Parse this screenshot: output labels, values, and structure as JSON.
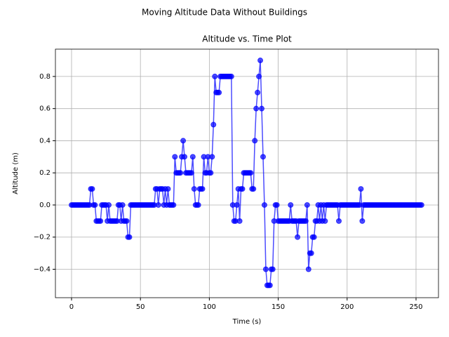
{
  "chart_data": {
    "type": "line",
    "suptitle": "Moving Altitude Data Without Buildings",
    "title": "Altitude vs. Time Plot",
    "x_label": "Time (s)",
    "y_label": "Altitude (m)",
    "color": "#0000ff",
    "grid": true,
    "xlim": [
      -11.7,
      266.3
    ],
    "ylim": [
      -0.577,
      0.97
    ],
    "xticks": [
      0,
      50,
      100,
      150,
      200,
      250
    ],
    "yticks": [
      {
        "value": -0.4,
        "label": "−0.4"
      },
      {
        "value": -0.2,
        "label": "−0.2"
      },
      {
        "value": 0,
        "label": "0.0"
      },
      0.2,
      0.4,
      0.6,
      0.8
    ],
    "x": [
      0,
      1,
      2,
      3,
      4,
      5,
      6,
      7,
      8,
      9,
      10,
      11,
      12,
      13,
      14,
      15,
      16,
      17,
      18,
      19,
      20,
      21,
      22,
      23,
      24,
      25,
      26,
      27,
      28,
      29,
      30,
      31,
      32,
      33,
      34,
      35,
      36,
      37,
      38,
      39,
      40,
      41,
      42,
      43,
      44,
      45,
      46,
      47,
      48,
      49,
      50,
      51,
      52,
      53,
      54,
      55,
      56,
      57,
      58,
      59,
      60,
      61,
      62,
      63,
      64,
      65,
      66,
      67,
      68,
      69,
      70,
      71,
      72,
      73,
      74,
      75,
      76,
      77,
      78,
      79,
      80,
      81,
      82,
      83,
      84,
      85,
      86,
      87,
      88,
      89,
      90,
      91,
      92,
      93,
      94,
      95,
      96,
      97,
      98,
      99,
      100,
      101,
      102,
      103,
      104,
      105,
      106,
      107,
      108,
      109,
      110,
      111,
      112,
      113,
      114,
      115,
      116,
      117,
      118,
      119,
      120,
      121,
      122,
      123,
      124,
      125,
      126,
      127,
      128,
      129,
      130,
      131,
      132,
      133,
      134,
      135,
      136,
      137,
      138,
      139,
      140,
      141,
      142,
      143,
      144,
      145,
      146,
      147,
      148,
      149,
      150,
      151,
      152,
      153,
      154,
      155,
      156,
      157,
      158,
      159,
      160,
      161,
      162,
      163,
      164,
      165,
      166,
      167,
      168,
      169,
      170,
      171,
      172,
      173,
      174,
      175,
      176,
      177,
      178,
      179,
      180,
      181,
      182,
      183,
      184,
      185,
      186,
      187,
      188,
      189,
      190,
      191,
      192,
      193,
      194,
      195,
      196,
      197,
      198,
      199,
      200,
      201,
      202,
      203,
      204,
      205,
      206,
      207,
      208,
      209,
      210,
      211,
      212,
      213,
      214,
      215,
      216,
      217,
      218,
      219,
      220,
      221,
      222,
      223,
      224,
      225,
      226,
      227,
      228,
      229,
      230,
      231,
      232,
      233,
      234,
      235,
      236,
      237,
      238,
      239,
      240,
      241,
      242,
      243,
      244,
      245,
      246,
      247,
      248,
      249,
      250,
      251,
      252,
      253,
      254
    ],
    "values": [
      0,
      0,
      0,
      0,
      0,
      0,
      0,
      0,
      0,
      0,
      0,
      0,
      0,
      0,
      0.1,
      0.1,
      0,
      0,
      -0.1,
      -0.1,
      -0.1,
      -0.1,
      0,
      0,
      0,
      0,
      -0.1,
      0,
      -0.1,
      -0.1,
      -0.1,
      -0.1,
      -0.1,
      -0.1,
      0,
      0,
      -0.1,
      0,
      -0.1,
      -0.1,
      -0.1,
      -0.2,
      -0.2,
      0,
      0,
      0,
      0,
      0,
      0,
      0,
      0,
      0,
      0,
      0,
      0,
      0,
      0,
      0,
      0,
      0,
      0,
      0.1,
      0.1,
      0,
      0.1,
      0.1,
      0.1,
      0,
      0.1,
      0,
      0.1,
      0,
      0,
      0,
      0,
      0.3,
      0.2,
      0.2,
      0.2,
      0.2,
      0.3,
      0.4,
      0.3,
      0.2,
      0.2,
      0.2,
      0.2,
      0.2,
      0.3,
      0.1,
      0,
      0,
      0,
      0.1,
      0.1,
      0.1,
      0.3,
      0.2,
      0.2,
      0.3,
      0.2,
      0.2,
      0.3,
      0.5,
      0.8,
      0.7,
      0.7,
      0.7,
      0.8,
      0.8,
      0.8,
      0.8,
      0.8,
      0.8,
      0.8,
      0.8,
      0.8,
      0,
      -0.1,
      -0.1,
      0,
      0.1,
      -0.1,
      0.1,
      0.1,
      0.2,
      0.2,
      0.2,
      0.2,
      0.2,
      0.2,
      0.1,
      0.1,
      0.4,
      0.6,
      0.7,
      0.8,
      0.9,
      0.6,
      0.3,
      0,
      -0.4,
      -0.5,
      -0.5,
      -0.5,
      -0.4,
      -0.4,
      -0.1,
      0,
      0,
      -0.1,
      -0.1,
      -0.1,
      -0.1,
      -0.1,
      -0.1,
      -0.1,
      -0.1,
      -0.1,
      0,
      -0.1,
      -0.1,
      -0.1,
      -0.1,
      -0.2,
      -0.1,
      -0.1,
      -0.1,
      -0.1,
      -0.1,
      -0.1,
      0,
      -0.4,
      -0.3,
      -0.3,
      -0.2,
      -0.2,
      -0.1,
      -0.1,
      0,
      -0.1,
      0,
      -0.1,
      0,
      -0.1,
      0,
      0,
      0,
      0,
      0,
      0,
      0,
      0,
      0,
      -0.1,
      0,
      0,
      0,
      0,
      0,
      0,
      0,
      0,
      0,
      0,
      0,
      0,
      0,
      0,
      0,
      0.1,
      -0.1,
      0,
      0,
      0,
      0,
      0,
      0,
      0,
      0,
      0,
      0,
      0,
      0,
      0,
      0,
      0,
      0,
      0,
      0,
      0,
      0,
      0,
      0,
      0,
      0,
      0,
      0,
      0,
      0,
      0,
      0,
      0,
      0,
      0,
      0,
      0,
      0,
      0,
      0,
      0,
      0,
      0,
      0,
      0
    ]
  }
}
